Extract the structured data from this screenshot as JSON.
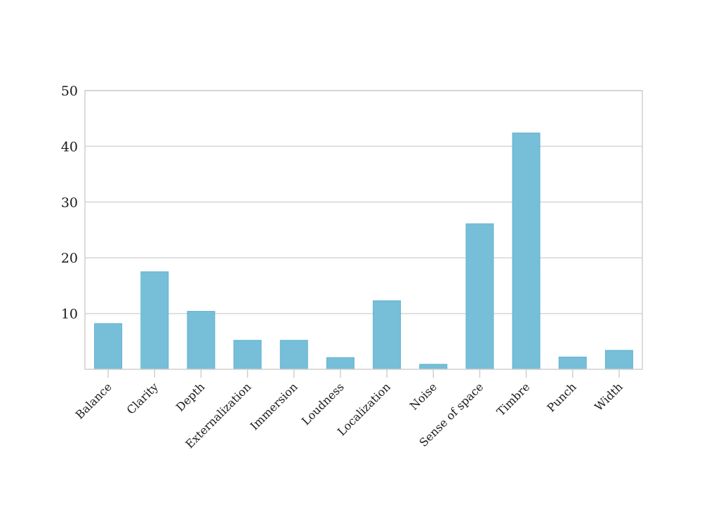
{
  "chart_data": {
    "type": "bar",
    "title": "",
    "xlabel": "",
    "ylabel": "",
    "categories": [
      "Balance",
      "Clarity",
      "Depth",
      "Externalization",
      "Immersion",
      "Loudness",
      "Localization",
      "Noise",
      "Sense of space",
      "Timbre",
      "Punch",
      "Width"
    ],
    "values": [
      8.2,
      17.5,
      10.4,
      5.2,
      5.2,
      2.1,
      12.3,
      0.9,
      26.1,
      42.4,
      2.2,
      3.4
    ],
    "ylim": [
      0,
      50
    ],
    "yticks": [
      10,
      20,
      30,
      40,
      50
    ],
    "grid": true,
    "legend": "none",
    "colors": {
      "bar": "#77bed8",
      "bar_edge": "#62b3d2",
      "grid": "#d6d6d6",
      "axis": "#cfcfcf"
    }
  }
}
